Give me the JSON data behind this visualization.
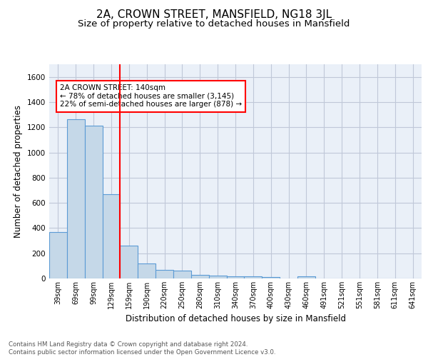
{
  "title": "2A, CROWN STREET, MANSFIELD, NG18 3JL",
  "subtitle": "Size of property relative to detached houses in Mansfield",
  "xlabel": "Distribution of detached houses by size in Mansfield",
  "ylabel": "Number of detached properties",
  "categories": [
    "39sqm",
    "69sqm",
    "99sqm",
    "129sqm",
    "159sqm",
    "190sqm",
    "220sqm",
    "250sqm",
    "280sqm",
    "310sqm",
    "340sqm",
    "370sqm",
    "400sqm",
    "430sqm",
    "460sqm",
    "491sqm",
    "521sqm",
    "551sqm",
    "581sqm",
    "611sqm",
    "641sqm"
  ],
  "values": [
    370,
    1265,
    1215,
    670,
    260,
    120,
    70,
    65,
    30,
    20,
    15,
    15,
    13,
    0,
    15,
    0,
    0,
    0,
    0,
    0,
    0
  ],
  "bar_color": "#c5d8e8",
  "bar_edge_color": "#5b9bd5",
  "grid_color": "#c0c8d8",
  "background_color": "#eaf0f8",
  "vline_x": 3.5,
  "vline_color": "red",
  "annotation_text": "2A CROWN STREET: 140sqm\n← 78% of detached houses are smaller (3,145)\n22% of semi-detached houses are larger (878) →",
  "ylim": [
    0,
    1700
  ],
  "yticks": [
    0,
    200,
    400,
    600,
    800,
    1000,
    1200,
    1400,
    1600
  ],
  "footer": "Contains HM Land Registry data © Crown copyright and database right 2024.\nContains public sector information licensed under the Open Government Licence v3.0.",
  "title_fontsize": 11,
  "subtitle_fontsize": 9.5,
  "ylabel_fontsize": 8.5,
  "xlabel_fontsize": 8.5,
  "footer_fontsize": 6.2,
  "annot_fontsize": 7.5
}
